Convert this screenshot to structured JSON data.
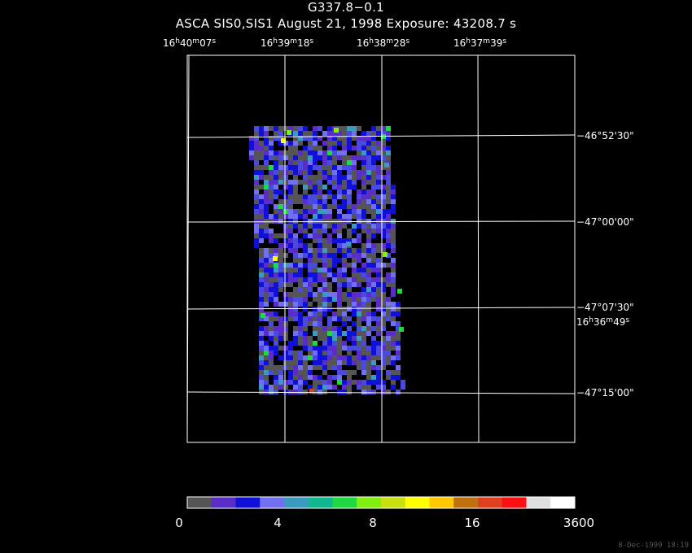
{
  "header": {
    "title": "G337.8−0.1",
    "subtitle": "ASCA SIS0,SIS1 August 21, 1998 Exposure: 43208.7 s"
  },
  "ra_labels": [
    {
      "h": "16",
      "m": "40",
      "s": "07"
    },
    {
      "h": "16",
      "m": "39",
      "s": "18"
    },
    {
      "h": "16",
      "m": "38",
      "s": "28"
    },
    {
      "h": "16",
      "m": "37",
      "s": "39"
    },
    {
      "h": "16",
      "m": "36",
      "s": "49"
    }
  ],
  "dec_labels": [
    "−46°52'30\"",
    "−47°00'00\"",
    "−47°07'30\"",
    "−47°15'00\""
  ],
  "colorbar": {
    "labels": [
      "0",
      "4",
      "8",
      "16",
      "3600"
    ],
    "colors": [
      "#555555",
      "#5a2dc8",
      "#1010d8",
      "#7070f0",
      "#3a9ac0",
      "#10b890",
      "#20d840",
      "#80f010",
      "#c8e010",
      "#ffff00",
      "#ffc800",
      "#c07010",
      "#e04020",
      "#ff1010",
      "#e0e0e0",
      "#ffffff"
    ]
  },
  "footer": {
    "timestamp": "8-Dec-1999 18:19"
  }
}
